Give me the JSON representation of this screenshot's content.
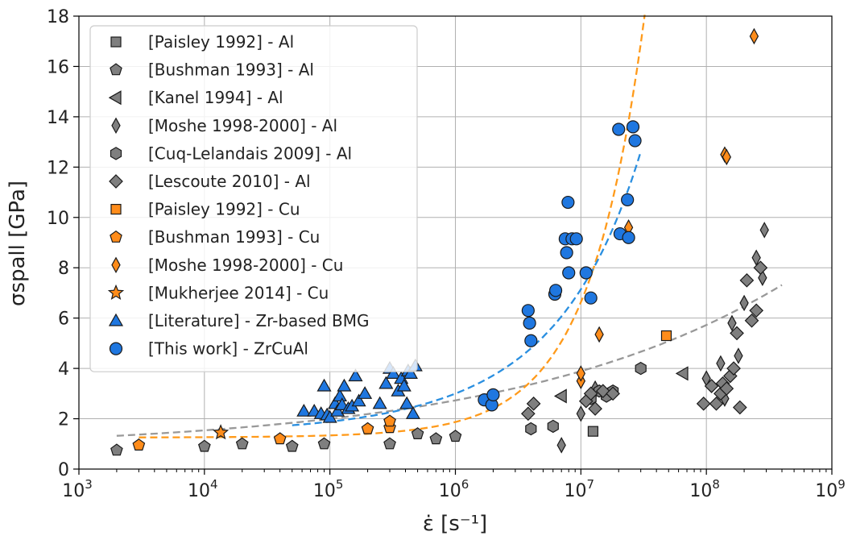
{
  "chart_data": {
    "type": "scatter",
    "title": "",
    "xlabel": "ε̇ [s⁻¹]",
    "ylabel": "σspall [GPa]",
    "xscale": "log",
    "xlim": [
      1000,
      1000000000
    ],
    "ylim": [
      0,
      18
    ],
    "grid": true,
    "legend_position": "top-left",
    "x_tick_labels": [
      {
        "base": "10",
        "exp": "3"
      },
      {
        "base": "10",
        "exp": "4"
      },
      {
        "base": "10",
        "exp": "5"
      },
      {
        "base": "10",
        "exp": "6"
      },
      {
        "base": "10",
        "exp": "7"
      },
      {
        "base": "10",
        "exp": "8"
      },
      {
        "base": "10",
        "exp": "9"
      }
    ],
    "y_tick_labels": [
      "0",
      "2",
      "4",
      "6",
      "8",
      "10",
      "12",
      "14",
      "16",
      "18"
    ],
    "series": [
      {
        "name": "[Paisley 1992] - Al",
        "marker": "square",
        "color": "#7f7f7f",
        "points": [
          [
            12500000,
            1.5
          ]
        ]
      },
      {
        "name": "[Bushman 1993] - Al",
        "marker": "pentagon",
        "color": "#7f7f7f",
        "points": [
          [
            2000,
            0.75
          ],
          [
            10000,
            0.9
          ],
          [
            20000,
            1.0
          ],
          [
            50000,
            0.9
          ],
          [
            90000,
            1.0
          ],
          [
            300000,
            1.0
          ],
          [
            500000,
            1.4
          ],
          [
            700000,
            1.2
          ],
          [
            1000000,
            1.3
          ]
        ]
      },
      {
        "name": "[Kanel 1994] - Al",
        "marker": "triangle-left",
        "color": "#7f7f7f",
        "points": [
          [
            7000000,
            2.9
          ],
          [
            65000000,
            3.8
          ]
        ]
      },
      {
        "name": "[Moshe 1998-2000] - Al",
        "marker": "thin-diamond",
        "color": "#7f7f7f",
        "points": [
          [
            7000000,
            0.95
          ],
          [
            10000000,
            2.2
          ],
          [
            13000000,
            3.2
          ],
          [
            100000000,
            3.6
          ],
          [
            130000000,
            4.2
          ],
          [
            140000000,
            2.8
          ],
          [
            160000000,
            5.8
          ],
          [
            180000000,
            4.5
          ],
          [
            200000000,
            6.6
          ],
          [
            250000000,
            8.4
          ],
          [
            280000000,
            7.6
          ],
          [
            290000000,
            9.5
          ]
        ]
      },
      {
        "name": "[Cuq-Lelandais 2009] - Al",
        "marker": "hexagon",
        "color": "#7f7f7f",
        "points": [
          [
            4000000,
            1.6
          ],
          [
            6000000,
            1.7
          ],
          [
            12000000,
            2.8
          ],
          [
            14000000,
            3.1
          ],
          [
            16000000,
            2.9
          ],
          [
            18000000,
            3.1
          ],
          [
            30000000,
            4.0
          ]
        ]
      },
      {
        "name": "[Lescoute 2010] - Al",
        "marker": "diamond",
        "color": "#7f7f7f",
        "points": [
          [
            3800000,
            2.2
          ],
          [
            4200000,
            2.6
          ],
          [
            11000000,
            2.7
          ],
          [
            12000000,
            3.0
          ],
          [
            13000000,
            2.4
          ],
          [
            15000000,
            3.1
          ],
          [
            18000000,
            3.0
          ],
          [
            95000000,
            2.6
          ],
          [
            110000000,
            3.3
          ],
          [
            120000000,
            2.6
          ],
          [
            130000000,
            3.0
          ],
          [
            135000000,
            3.4
          ],
          [
            145000000,
            3.2
          ],
          [
            155000000,
            3.7
          ],
          [
            165000000,
            4.0
          ],
          [
            175000000,
            5.4
          ],
          [
            185000000,
            2.45
          ],
          [
            210000000,
            7.5
          ],
          [
            230000000,
            5.9
          ],
          [
            250000000,
            6.3
          ],
          [
            270000000,
            8.0
          ]
        ]
      },
      {
        "name": "[Paisley 1992] - Cu",
        "marker": "square",
        "color": "#ff8c1a",
        "points": [
          [
            48000000,
            5.3
          ]
        ]
      },
      {
        "name": "[Bushman 1993] - Cu",
        "marker": "pentagon",
        "color": "#ff8c1a",
        "points": [
          [
            3000,
            0.95
          ],
          [
            40000,
            1.2
          ],
          [
            200000,
            1.6
          ],
          [
            300000,
            1.65
          ],
          [
            300000,
            1.9
          ]
        ]
      },
      {
        "name": "[Moshe 1998-2000] - Cu",
        "marker": "thin-diamond",
        "color": "#ff8c1a",
        "points": [
          [
            10000000,
            3.5
          ],
          [
            10000000,
            3.8
          ],
          [
            14000000,
            5.35
          ],
          [
            24000000,
            9.6
          ],
          [
            140000000,
            12.5
          ],
          [
            145000000,
            12.4
          ],
          [
            240000000,
            17.2
          ]
        ]
      },
      {
        "name": "[Mukherjee 2014] - Cu",
        "marker": "star",
        "color": "#ff8c1a",
        "points": [
          [
            13500,
            1.45
          ]
        ]
      },
      {
        "name": "[Literature] - Zr-based BMG",
        "marker": "triangle-up",
        "color": "#1f77e0",
        "points": [
          [
            62000,
            2.3
          ],
          [
            75000,
            2.3
          ],
          [
            85000,
            2.2
          ],
          [
            90000,
            3.3
          ],
          [
            95000,
            2.15
          ],
          [
            100000,
            2.05
          ],
          [
            110000,
            2.6
          ],
          [
            115000,
            2.3
          ],
          [
            120000,
            2.9
          ],
          [
            125000,
            2.55
          ],
          [
            130000,
            3.3
          ],
          [
            140000,
            2.4
          ],
          [
            150000,
            2.5
          ],
          [
            160000,
            3.7
          ],
          [
            170000,
            2.7
          ],
          [
            190000,
            3.0
          ],
          [
            250000,
            2.6
          ],
          [
            280000,
            3.4
          ],
          [
            300000,
            4.0
          ],
          [
            320000,
            3.8
          ],
          [
            350000,
            3.1
          ],
          [
            370000,
            3.6
          ],
          [
            390000,
            3.3
          ],
          [
            410000,
            2.6
          ],
          [
            420000,
            3.9
          ],
          [
            440000,
            3.8
          ],
          [
            460000,
            2.2
          ],
          [
            480000,
            4.1
          ]
        ]
      },
      {
        "name": "[This work] - ZrCuAl",
        "marker": "circle",
        "color": "#1f77e0",
        "points": [
          [
            1700000,
            2.75
          ],
          [
            1950000,
            2.55
          ],
          [
            2000000,
            2.95
          ],
          [
            3800000,
            6.3
          ],
          [
            3900000,
            5.8
          ],
          [
            4000000,
            5.1
          ],
          [
            6200000,
            6.95
          ],
          [
            6300000,
            7.1
          ],
          [
            7500000,
            9.15
          ],
          [
            7700000,
            8.6
          ],
          [
            7900000,
            10.6
          ],
          [
            8000000,
            7.8
          ],
          [
            8500000,
            9.15
          ],
          [
            9200000,
            9.15
          ],
          [
            11000000,
            7.8
          ],
          [
            12000000,
            6.8
          ],
          [
            20000000,
            13.5
          ],
          [
            20500000,
            9.35
          ],
          [
            23500000,
            10.7
          ],
          [
            24000000,
            9.2
          ],
          [
            26000000,
            13.6
          ],
          [
            27000000,
            13.05
          ]
        ]
      }
    ]
  }
}
